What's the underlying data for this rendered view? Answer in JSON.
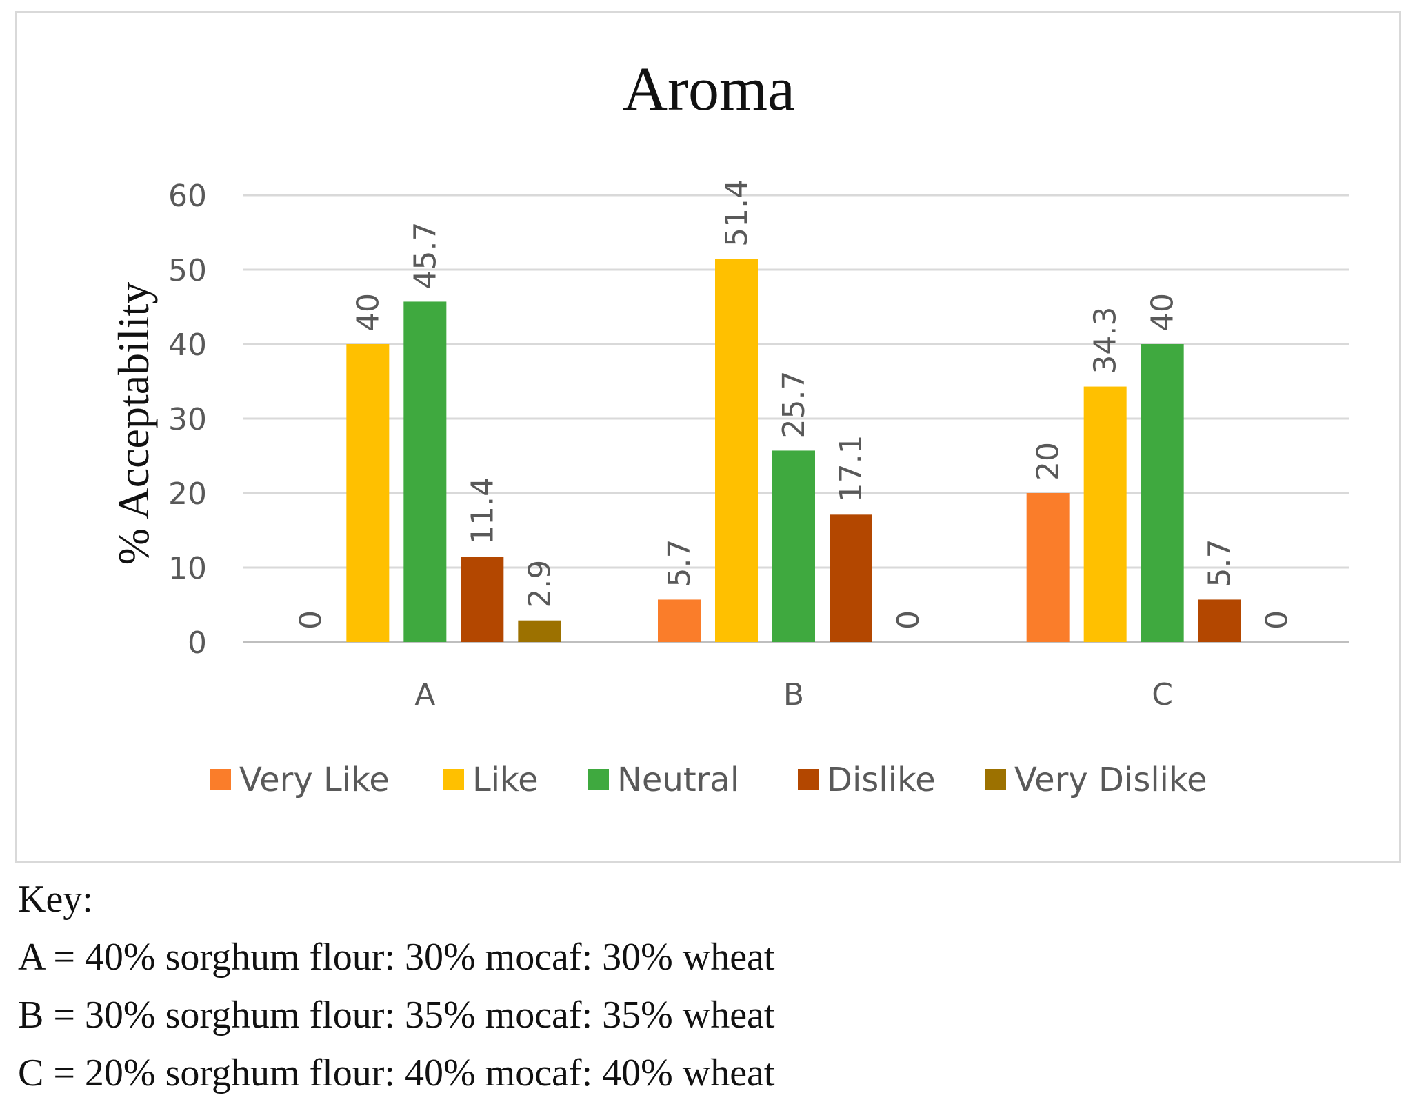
{
  "chart_data": {
    "type": "bar",
    "title": "Aroma",
    "xlabel": "",
    "ylabel": "% Acceptability",
    "categories": [
      "A",
      "B",
      "C"
    ],
    "ylim": [
      0,
      60
    ],
    "yticks": [
      0,
      10,
      20,
      30,
      40,
      50,
      60
    ],
    "grid": true,
    "legend_position": "bottom",
    "series": [
      {
        "name": "Very Like",
        "color": "#fa7d2a",
        "values": [
          0,
          5.7,
          20
        ],
        "labels": [
          "0",
          "5.7",
          "20"
        ]
      },
      {
        "name": "Like",
        "color": "#ffc000",
        "values": [
          40,
          51.4,
          34.3
        ],
        "labels": [
          "40",
          "51.4",
          "34.3"
        ]
      },
      {
        "name": "Neutral",
        "color": "#3fa93f",
        "values": [
          45.7,
          25.7,
          40
        ],
        "labels": [
          "45.7",
          "25.7",
          "40"
        ]
      },
      {
        "name": "Dislike",
        "color": "#b34700",
        "values": [
          11.4,
          17.1,
          5.7
        ],
        "labels": [
          "11.4",
          "17.1",
          "5.7"
        ]
      },
      {
        "name": "Very Dislike",
        "color": "#9c7100",
        "values": [
          2.9,
          0,
          0
        ],
        "labels": [
          "2.9",
          "0",
          "0"
        ]
      }
    ]
  },
  "key": {
    "heading": "Key:",
    "lines": [
      "A = 40% sorghum flour: 30% mocaf: 30% wheat",
      "B = 30% sorghum flour: 35% mocaf: 35% wheat",
      "C = 20% sorghum flour: 40% mocaf: 40% wheat"
    ]
  }
}
